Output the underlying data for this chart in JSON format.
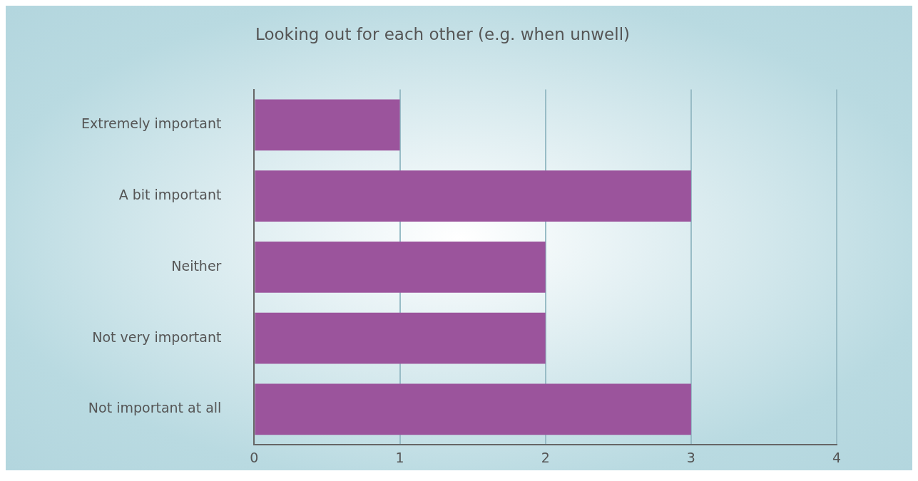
{
  "chart_data": {
    "type": "bar",
    "orientation": "horizontal",
    "title": "Looking out for each other (e.g. when unwell)",
    "categories": [
      "Extremely important",
      "A bit important",
      "Neither",
      "Not very important",
      "Not important at all"
    ],
    "values": [
      1,
      3,
      2,
      2,
      3
    ],
    "color": "#9b549c",
    "xlim": [
      0,
      4
    ],
    "xticks": [
      0,
      1,
      2,
      3,
      4
    ],
    "grid": "x",
    "legend": false
  }
}
